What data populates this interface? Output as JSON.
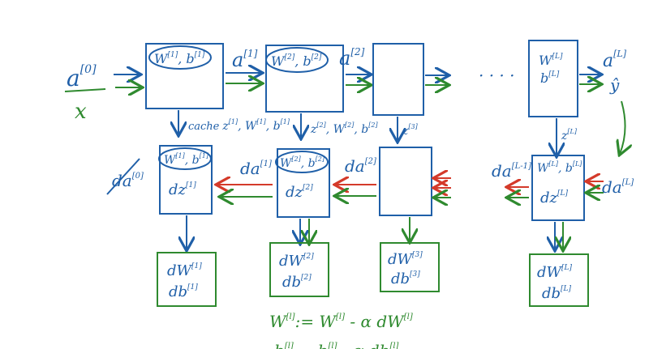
{
  "forward": {
    "input_a": "a",
    "input_a_sup": "[0]",
    "input_x": "x",
    "block1_params": "W",
    "block1_params_sup1": "[1]",
    "block1_params_b": ", b",
    "block1_params_sup2": "[1]",
    "a1": "a",
    "a1_sup": "[1]",
    "block2_params": "W",
    "block2_params_sup1": "[2]",
    "block2_params_b": ", b",
    "block2_params_sup2": "[2]",
    "a2": "a",
    "a2_sup": "[2]",
    "ellipsis": "· · · ·",
    "blockL_W": "W",
    "blockL_W_sup": "[L]",
    "blockL_b": "b",
    "blockL_b_sup": "[L]",
    "output_a": "a",
    "output_a_sup": "[L]",
    "output_yhat": "ŷ"
  },
  "cache": {
    "cache1_label": "cache",
    "cache1_z": "z",
    "cache1_z_sup": "[1]",
    "cache1_rest": ", W",
    "cache1_rest_sup": "[1]",
    "cache1_b": ", b",
    "cache1_b_sup": "[1]",
    "cache2_z": "z",
    "cache2_z_sup": "[2]",
    "cache2_rest": ", W",
    "cache2_rest_sup": "[2]",
    "cache2_b": ", b",
    "cache2_b_sup": "[2]",
    "cache3_z": "z",
    "cache3_z_sup": "[3]",
    "cacheL_z": "z",
    "cacheL_z_sup": "[L]"
  },
  "backward": {
    "da0": "da",
    "da0_sup": "[0]",
    "bblock1_W": "W",
    "bblock1_W_sup": "[1]",
    "bblock1_b": ", b",
    "bblock1_b_sup": "[1]",
    "bblock1_dz": "dz",
    "bblock1_dz_sup": "[1]",
    "da1": "da",
    "da1_sup": "[1]",
    "bblock2_W": "W",
    "bblock2_W_sup": "[2]",
    "bblock2_b": ", b",
    "bblock2_b_sup": "[2]",
    "bblock2_dz": "dz",
    "bblock2_dz_sup": "[2]",
    "da2": "da",
    "da2_sup": "[2]",
    "daLminus1": "da",
    "daLminus1_sup": "[L-1]",
    "bblockL_W": "W",
    "bblockL_W_sup": "[L]",
    "bblockL_b": ", b",
    "bblockL_b_sup": "[L]",
    "bblockL_dz": "dz",
    "bblockL_dz_sup": "[L]",
    "daL": "da",
    "daL_sup": "[L]"
  },
  "grads": {
    "g1_dW": "dW",
    "g1_dW_sup": "[1]",
    "g1_db": "db",
    "g1_db_sup": "[1]",
    "g2_dW": "dW",
    "g2_dW_sup": "[2]",
    "g2_db": "db",
    "g2_db_sup": "[2]",
    "g3_dW": "dW",
    "g3_dW_sup": "[3]",
    "g3_db": "db",
    "g3_db_sup": "[3]",
    "gL_dW": "dW",
    "gL_dW_sup": "[L]",
    "gL_db": "db",
    "gL_db_sup": "[L]"
  },
  "update": {
    "line1_W": "W",
    "line1_W_sup": "[l]",
    "line1_assign": ":= W",
    "line1_assign_sup": "[l]",
    "line1_rest": " - α dW",
    "line1_rest_sup": "[l]",
    "line2_b": "b",
    "line2_b_sup": "[l]",
    "line2_assign": ":= b",
    "line2_assign_sup": "[l]",
    "line2_rest": " - α db",
    "line2_rest_sup": "[l]"
  },
  "colors": {
    "blue": "#1f5fa8",
    "green": "#2f8a2f",
    "red": "#d43a2a"
  }
}
